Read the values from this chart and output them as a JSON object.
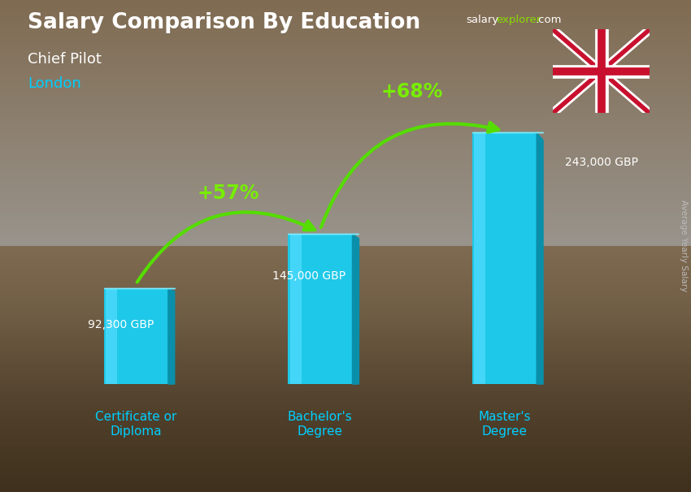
{
  "title": "Salary Comparison By Education",
  "subtitle": "Chief Pilot",
  "location": "London",
  "categories": [
    "Certificate or\nDiploma",
    "Bachelor's\nDegree",
    "Master's\nDegree"
  ],
  "values": [
    92300,
    145000,
    243000
  ],
  "value_labels": [
    "92,300 GBP",
    "145,000 GBP",
    "243,000 GBP"
  ],
  "pct_labels": [
    "+57%",
    "+68%"
  ],
  "bar_color_main": "#1EC8E8",
  "bar_color_light": "#7EEEFF",
  "bar_color_dark": "#0A8FAA",
  "background_top": "#8a8a7a",
  "background_bottom": "#5a4a35",
  "title_color": "#FFFFFF",
  "subtitle_color": "#FFFFFF",
  "location_color": "#00CFFF",
  "value_label_color": "#FFFFFF",
  "pct_color": "#77EE00",
  "arrow_color": "#55DD00",
  "xlabel_color": "#00CFFF",
  "right_label": "Average Yearly Salary",
  "ylim_max": 290000,
  "bar_width": 0.35,
  "x_positions": [
    0.55,
    1.55,
    2.55
  ],
  "xlim": [
    0.0,
    3.3
  ]
}
